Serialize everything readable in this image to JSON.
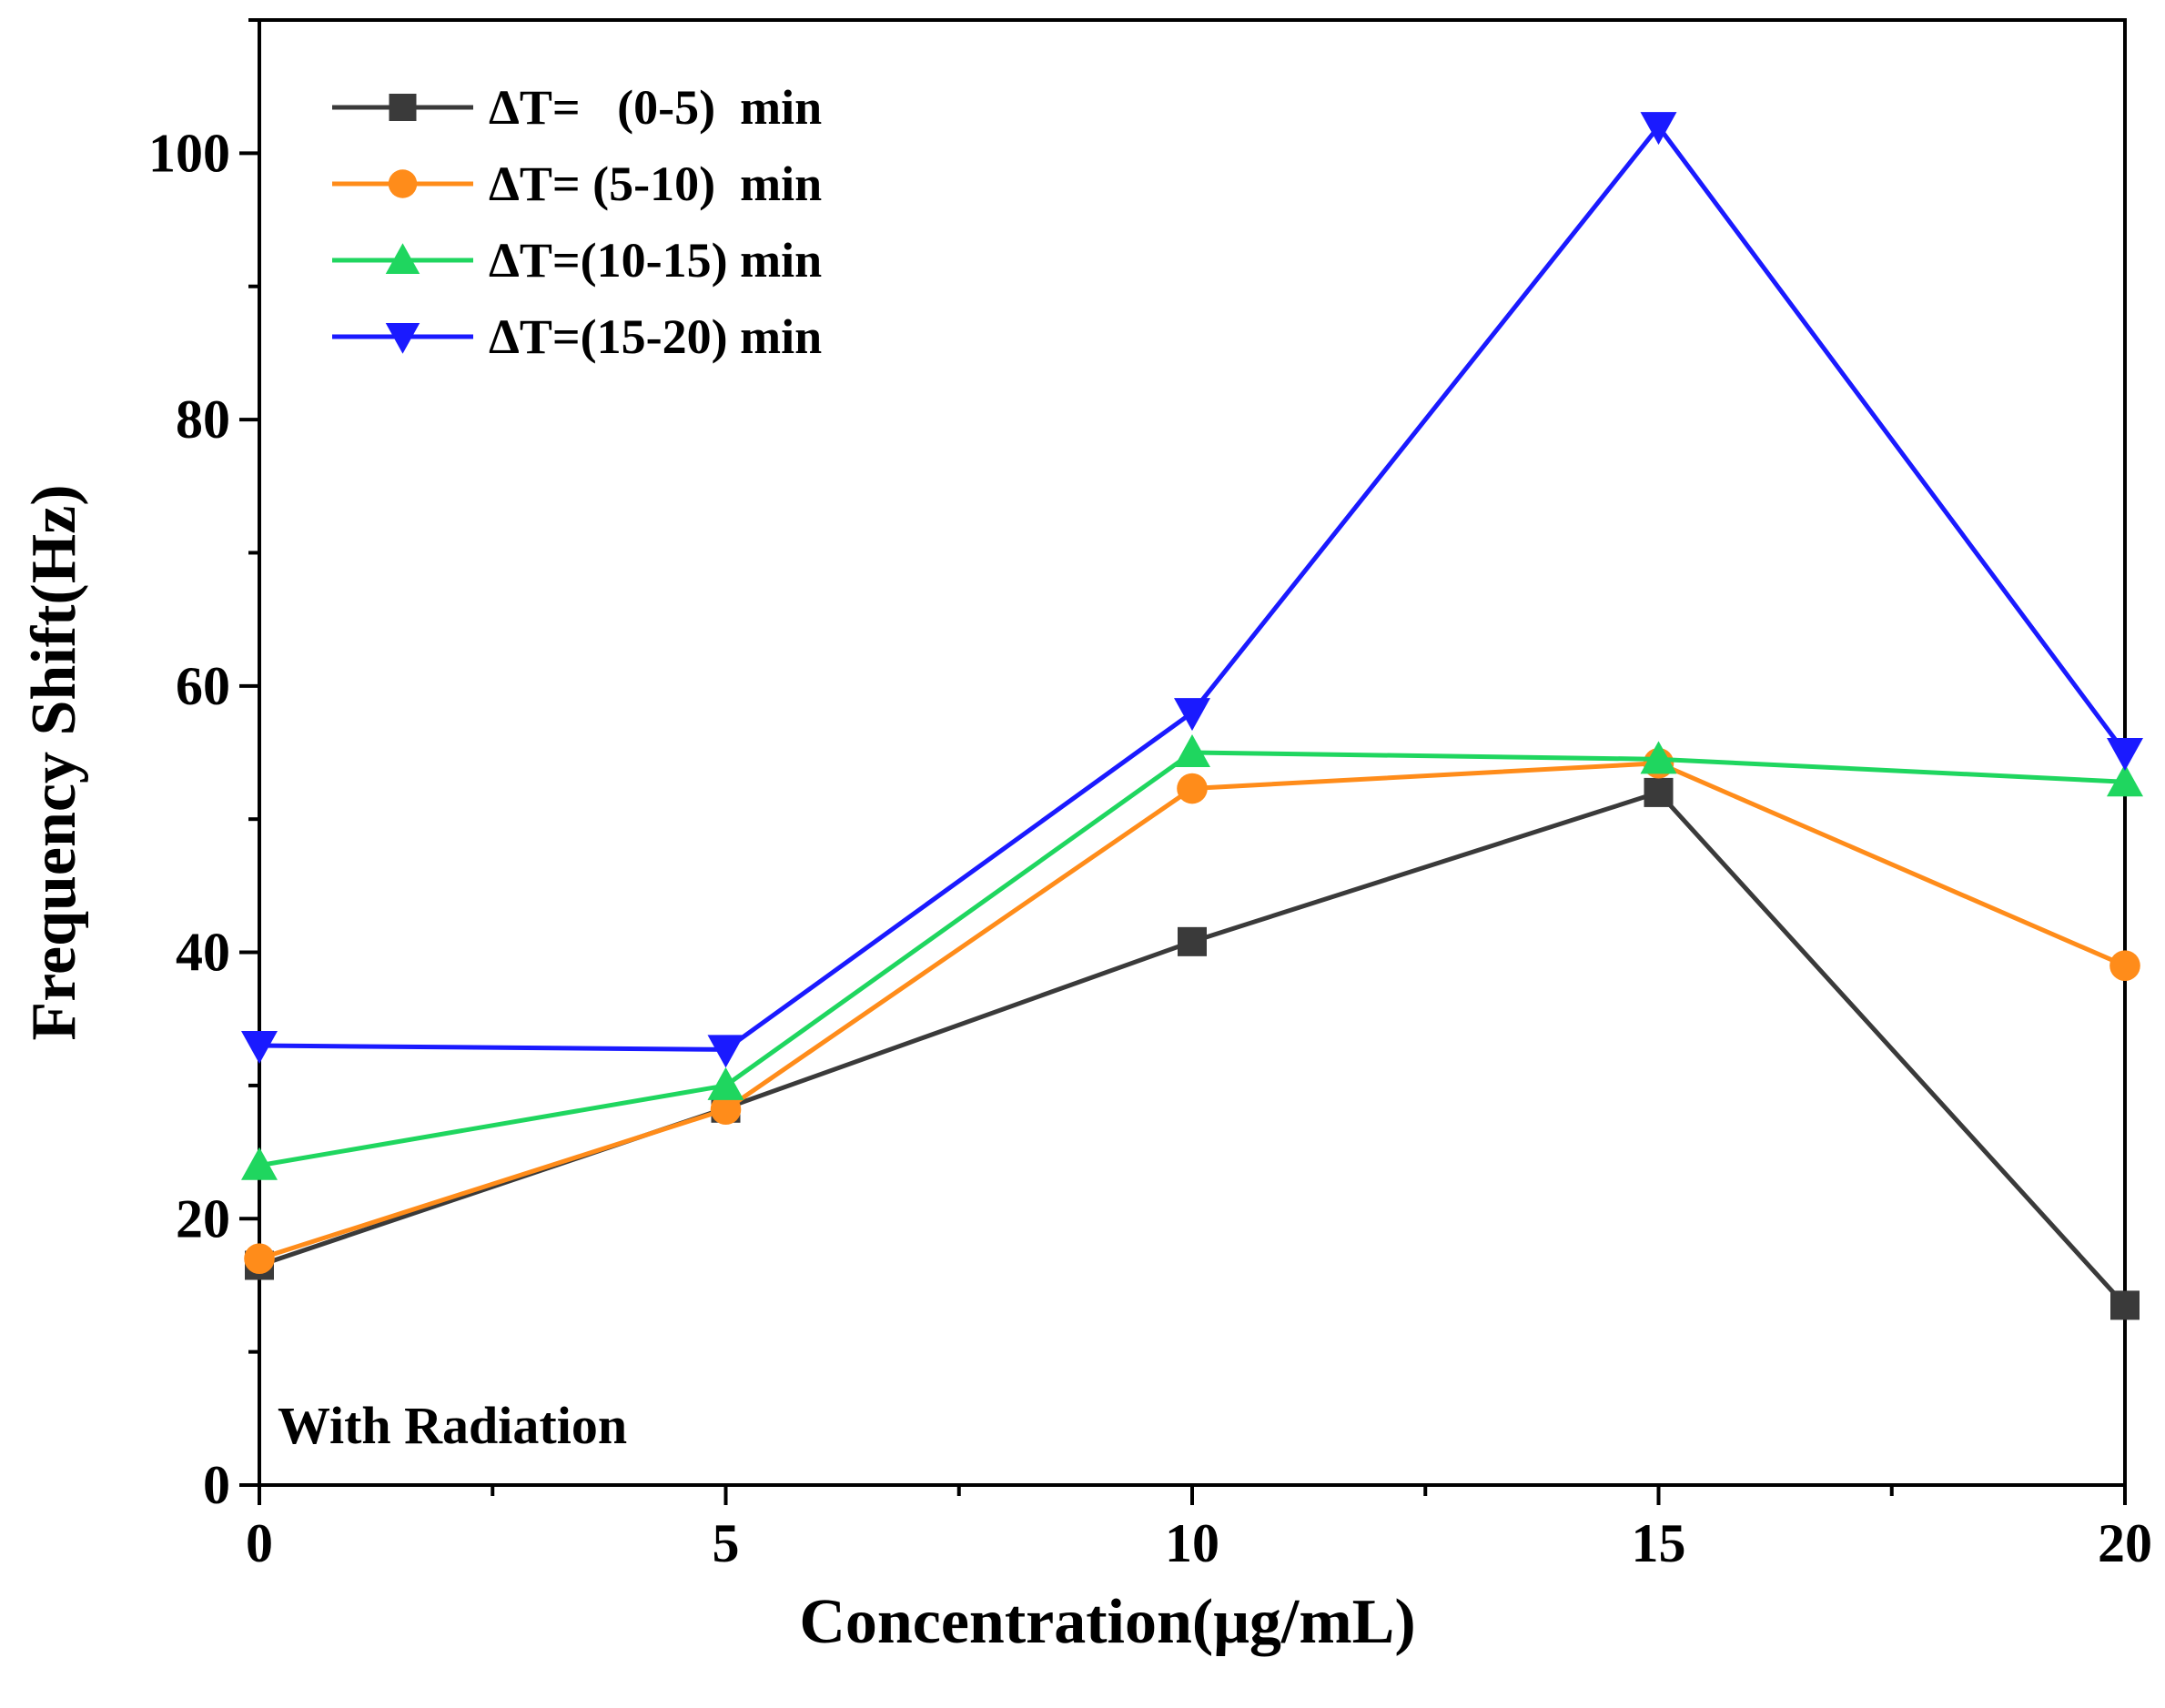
{
  "chart_data": {
    "type": "line",
    "title": "",
    "xlabel": "Concentration(μg/mL)",
    "ylabel": "Frequency Shift(Hz)",
    "xlim": [
      0,
      20
    ],
    "ylim": [
      0,
      110
    ],
    "x": [
      0,
      5,
      10,
      15,
      20
    ],
    "xticks": [
      0,
      5,
      10,
      15,
      20
    ],
    "yticks": [
      0,
      20,
      40,
      60,
      80,
      100
    ],
    "grid": false,
    "legend_position": "top-left",
    "annotation": "With Radiation",
    "series": [
      {
        "name": "ΔT=   (0-5)  min",
        "color": "#3a3a3a",
        "marker": "square",
        "values": [
          16.5,
          28.3,
          40.8,
          52.0,
          13.5
        ]
      },
      {
        "name": "ΔT= (5-10)  min",
        "color": "#ff8c1a",
        "marker": "circle",
        "values": [
          17.0,
          28.2,
          52.3,
          54.2,
          39.0
        ]
      },
      {
        "name": "ΔT=(10-15) min",
        "color": "#1fd65f",
        "marker": "triangle-up",
        "values": [
          24.0,
          30.0,
          55.0,
          54.5,
          52.8
        ]
      },
      {
        "name": "ΔT=(15-20) min",
        "color": "#1a1aff",
        "marker": "triangle-down",
        "values": [
          33.0,
          32.7,
          58.0,
          102.0,
          55.0
        ]
      }
    ]
  }
}
